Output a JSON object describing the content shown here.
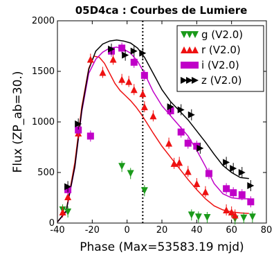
{
  "chart_data": {
    "type": "scatter",
    "title": "05D4ca : Courbes de Lumiere",
    "xlabel": "Phase (Max=53583.19 mjd)",
    "ylabel": "Flux (ZP_ab=30.)",
    "xlim": [
      -40,
      80
    ],
    "ylim": [
      0,
      2000
    ],
    "xticks": [
      -40,
      -20,
      0,
      20,
      40,
      60,
      80
    ],
    "xtick_labels": [
      "-40",
      "-20",
      "0",
      "20",
      "40",
      "60",
      "80"
    ],
    "yticks": [
      0,
      500,
      1000,
      1500,
      2000
    ],
    "ytick_labels": [
      "0",
      "500",
      "1000",
      "1500",
      "2000"
    ],
    "max_phase_line": 9,
    "legend_position": "top-right",
    "series": [
      {
        "name": "g (V2.0)",
        "marker": "triangle-down",
        "color": "#1a9a1a",
        "points": [
          [
            -37,
            130
          ],
          [
            -34,
            110
          ],
          [
            -3,
            560
          ],
          [
            2,
            490
          ],
          [
            10,
            320
          ],
          [
            37,
            80
          ],
          [
            41,
            60
          ],
          [
            46,
            55
          ],
          [
            62,
            40
          ],
          [
            67,
            50
          ],
          [
            72,
            60
          ]
        ]
      },
      {
        "name": "r (V2.0)",
        "marker": "triangle-up",
        "color": "#ee1111",
        "points": [
          [
            -37,
            110
          ],
          [
            -34,
            260
          ],
          [
            -28,
            890
          ],
          [
            -21,
            1620
          ],
          [
            -14,
            1490
          ],
          [
            -8,
            1620
          ],
          [
            -3,
            1420
          ],
          [
            1,
            1400
          ],
          [
            4,
            1320
          ],
          [
            9,
            1280
          ],
          [
            10,
            1150
          ],
          [
            15,
            1060
          ],
          [
            24,
            790
          ],
          [
            27,
            590
          ],
          [
            30,
            600
          ],
          [
            35,
            510
          ],
          [
            40,
            390
          ],
          [
            45,
            310
          ],
          [
            57,
            130
          ],
          [
            60,
            110
          ],
          [
            62,
            80
          ]
        ]
      },
      {
        "name": "i (V2.0)",
        "marker": "square",
        "color": "#c000c8",
        "points": [
          [
            -34,
            330
          ],
          [
            -28,
            920
          ],
          [
            -21,
            860
          ],
          [
            -9,
            1700
          ],
          [
            -3,
            1730
          ],
          [
            4,
            1590
          ],
          [
            10,
            1460
          ],
          [
            25,
            1110
          ],
          [
            31,
            900
          ],
          [
            35,
            790
          ],
          [
            40,
            760
          ],
          [
            47,
            490
          ],
          [
            57,
            340
          ],
          [
            61,
            300
          ],
          [
            66,
            280
          ],
          [
            71,
            210
          ]
        ]
      },
      {
        "name": "z (V2.0)",
        "marker": "triangle-right",
        "color": "#000000",
        "points": [
          [
            -34,
            360
          ],
          [
            -28,
            980
          ],
          [
            -9,
            1720
          ],
          [
            -1,
            1660
          ],
          [
            4,
            1700
          ],
          [
            9,
            1680
          ],
          [
            25,
            1150
          ],
          [
            31,
            1120
          ],
          [
            37,
            1070
          ],
          [
            42,
            740
          ],
          [
            57,
            600
          ],
          [
            61,
            540
          ],
          [
            66,
            500
          ],
          [
            71,
            370
          ]
        ]
      }
    ],
    "fit_curves": [
      {
        "band": "r",
        "color": "#ee1111",
        "x": [
          -40,
          -35,
          -30,
          -26,
          -22,
          -19,
          -16,
          -13,
          -10,
          -7,
          -4,
          -1,
          2,
          5,
          8,
          11,
          15,
          20,
          25,
          30,
          35,
          40,
          45,
          50,
          55,
          60,
          65,
          70
        ],
        "y": [
          10,
          120,
          600,
          1150,
          1530,
          1650,
          1640,
          1580,
          1480,
          1380,
          1310,
          1260,
          1210,
          1150,
          1080,
          1000,
          890,
          760,
          650,
          540,
          430,
          330,
          240,
          170,
          130,
          110,
          100,
          95
        ]
      },
      {
        "band": "i",
        "color": "#c000c8",
        "x": [
          -40,
          -35,
          -30,
          -26,
          -22,
          -18,
          -14,
          -10,
          -6,
          -2,
          2,
          6,
          10,
          15,
          20,
          25,
          30,
          35,
          40,
          45,
          50,
          55,
          60,
          65,
          70
        ],
        "y": [
          10,
          110,
          550,
          1100,
          1480,
          1620,
          1690,
          1730,
          1740,
          1720,
          1680,
          1600,
          1480,
          1300,
          1160,
          1060,
          960,
          860,
          720,
          560,
          390,
          290,
          250,
          240,
          240
        ]
      },
      {
        "band": "z",
        "color": "#000000",
        "x": [
          -40,
          -35,
          -30,
          -26,
          -22,
          -18,
          -14,
          -10,
          -6,
          -2,
          2,
          6,
          10,
          15,
          20,
          25,
          30,
          35,
          40,
          45,
          50,
          55,
          60,
          65,
          70
        ],
        "y": [
          10,
          120,
          560,
          1120,
          1520,
          1700,
          1770,
          1800,
          1810,
          1800,
          1780,
          1730,
          1640,
          1480,
          1320,
          1200,
          1110,
          1020,
          910,
          800,
          680,
          570,
          500,
          450,
          440
        ]
      }
    ]
  }
}
